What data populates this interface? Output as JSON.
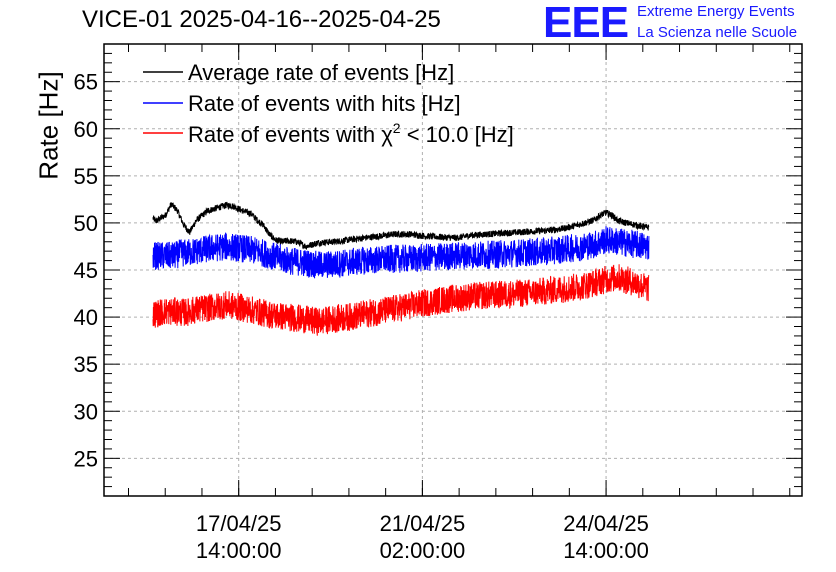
{
  "chart_data": {
    "type": "line",
    "title": "VICE-01 2025-04-16--2025-04-25",
    "ylabel": "Rate [Hz]",
    "xlabel": "",
    "ylim": [
      21,
      69
    ],
    "yticks": [
      "25",
      "30",
      "35",
      "40",
      "45",
      "50",
      "55",
      "60",
      "65"
    ],
    "grid": true,
    "xrange_hours": [
      0,
      228
    ],
    "xticks": [
      {
        "hour": 44,
        "date": "17/04/25",
        "time": "14:00:00"
      },
      {
        "hour": 104,
        "date": "21/04/25",
        "time": "02:00:00"
      },
      {
        "hour": 164,
        "date": "24/04/25",
        "time": "14:00:00"
      }
    ],
    "legend_position": "top-left",
    "series": [
      {
        "name": "Average rate of events [Hz]",
        "color": "#000000",
        "noise": 0.35,
        "x": [
          16,
          17,
          20,
          22,
          24,
          26,
          28,
          30,
          32,
          34,
          36,
          38,
          40,
          42,
          44,
          46,
          48,
          50,
          52,
          54,
          56,
          58,
          60,
          63,
          66,
          70,
          75,
          80,
          85,
          90,
          95,
          100,
          105,
          110,
          115,
          120,
          125,
          130,
          135,
          140,
          145,
          150,
          155,
          160,
          162,
          164,
          166,
          168,
          172,
          176,
          178
        ],
        "y": [
          50.5,
          50.2,
          50.8,
          52.0,
          51.3,
          49.8,
          49.0,
          50.2,
          50.8,
          51.3,
          51.5,
          51.7,
          51.9,
          51.8,
          51.5,
          51.2,
          51.0,
          50.3,
          49.8,
          48.8,
          48.2,
          48.0,
          48.1,
          48.0,
          47.5,
          47.9,
          48.0,
          48.2,
          48.4,
          48.6,
          48.8,
          48.8,
          48.6,
          48.5,
          48.4,
          48.7,
          48.8,
          48.9,
          49.0,
          49.1,
          49.2,
          49.4,
          49.8,
          50.3,
          50.8,
          51.1,
          50.8,
          50.2,
          49.9,
          49.6,
          49.5
        ]
      },
      {
        "name": "Rate of events with hits [Hz]",
        "color": "#0000ff",
        "noise": 1.5,
        "x": [
          16,
          20,
          23,
          25,
          27,
          30,
          35,
          40,
          45,
          50,
          55,
          60,
          65,
          70,
          75,
          80,
          85,
          90,
          95,
          100,
          105,
          110,
          115,
          120,
          125,
          130,
          135,
          140,
          145,
          150,
          155,
          160,
          164,
          168,
          172,
          176,
          178
        ],
        "y": [
          46.5,
          46.5,
          46.5,
          46.8,
          46.8,
          47.0,
          47.3,
          47.5,
          47.3,
          47.0,
          46.5,
          46.0,
          45.8,
          45.5,
          45.6,
          45.8,
          46.0,
          46.1,
          46.2,
          46.2,
          46.3,
          46.4,
          46.5,
          46.6,
          46.6,
          46.7,
          46.8,
          46.9,
          47.0,
          47.2,
          47.4,
          47.7,
          48.2,
          48.0,
          47.8,
          47.6,
          47.5
        ]
      },
      {
        "name": "Rate of events with χ² < 10.0 [Hz]",
        "color": "#ff0000",
        "noise": 1.5,
        "x": [
          16,
          20,
          23,
          25,
          27,
          30,
          35,
          40,
          45,
          50,
          55,
          60,
          65,
          70,
          75,
          80,
          85,
          90,
          95,
          100,
          105,
          110,
          115,
          120,
          125,
          130,
          135,
          140,
          145,
          150,
          155,
          160,
          164,
          168,
          172,
          176,
          178
        ],
        "y": [
          40.3,
          40.6,
          40.6,
          40.5,
          40.5,
          40.8,
          41.0,
          41.3,
          41.0,
          40.6,
          40.2,
          40.0,
          39.8,
          39.5,
          39.8,
          40.0,
          40.3,
          40.6,
          40.9,
          41.2,
          41.5,
          41.8,
          42.0,
          42.2,
          42.3,
          42.4,
          42.5,
          42.6,
          42.8,
          43.0,
          43.2,
          43.6,
          44.0,
          44.2,
          43.8,
          43.3,
          43.0
        ]
      }
    ]
  },
  "legend": {
    "avg": "Average rate of events [Hz]",
    "hits_label": "Rate of events with hits [Hz]",
    "chi_prefix": "Rate of events with ",
    "chi_symbol": "χ",
    "chi_sup": "2",
    "chi_suffix": " < 10.0 [Hz]"
  },
  "logo": {
    "mark": "EEE",
    "line1": "Extreme Energy Events",
    "line2": "La Scienza nelle Scuole"
  }
}
